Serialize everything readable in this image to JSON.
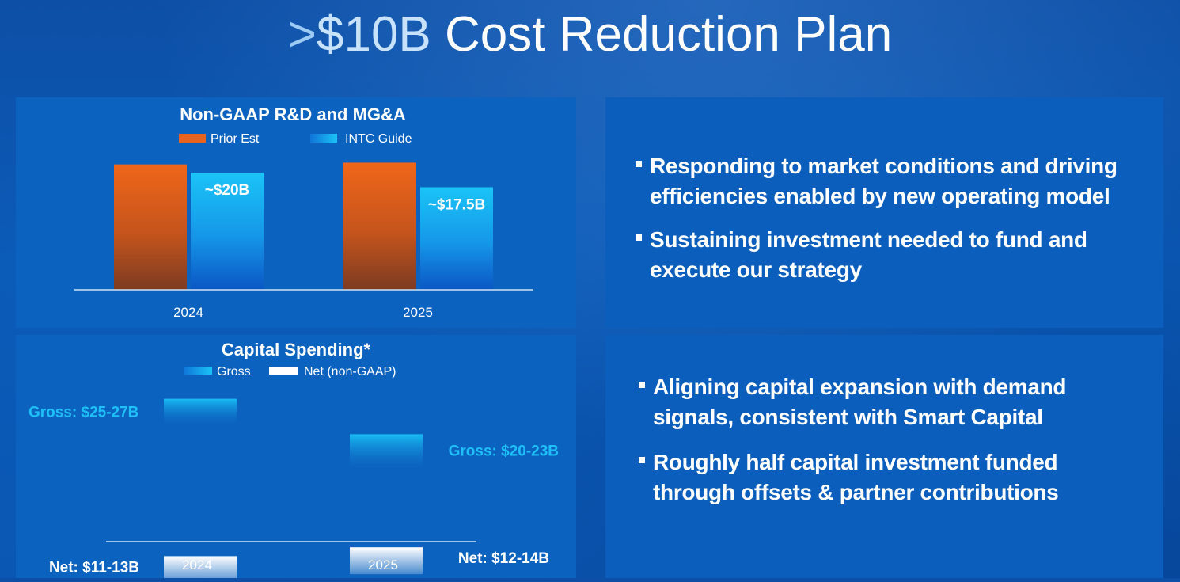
{
  "slide": {
    "title_gt": ">",
    "title_amount": "$10B",
    "title_rest": " Cost Reduction Plan"
  },
  "rd_panel": {
    "bullets": [
      "Responding to market conditions and driving efficiencies enabled by new operating model",
      "Sustaining investment needed to fund and execute our strategy"
    ]
  },
  "capex_panel": {
    "bullets": [
      "Aligning capital expansion with demand signals, consistent with Smart Capital",
      "Roughly half capital investment funded through offsets & partner contributions"
    ]
  },
  "chart_data": [
    {
      "type": "bar",
      "title": "Non-GAAP R&D and MG&A",
      "categories": [
        "2024",
        "2025"
      ],
      "series": [
        {
          "name": "Prior Est",
          "values": [
            21.4,
            21.7
          ],
          "color": "#e8641e"
        },
        {
          "name": "INTC Guide",
          "values": [
            20,
            17.5
          ],
          "color": "#19b8f3"
        }
      ],
      "data_labels": [
        "~$20B",
        "~$17.5B"
      ],
      "legend": "top-center"
    },
    {
      "type": "bar",
      "title": "Capital Spending*",
      "categories": [
        "2024",
        "2025"
      ],
      "series": [
        {
          "name": "Gross",
          "values": [
            [
              25,
              27
            ],
            [
              20,
              23
            ]
          ],
          "color": "#19b8f3"
        },
        {
          "name": "Net (non-GAAP)",
          "values": [
            [
              11,
              13
            ],
            [
              12,
              14
            ]
          ],
          "color": "#ffffff"
        }
      ],
      "data_labels": {
        "gross": [
          "Gross: $25-27B",
          "Gross: $20-23B"
        ],
        "net": [
          "Net: $11-13B",
          "Net: $12-14B"
        ]
      },
      "legend": "top-center"
    }
  ]
}
